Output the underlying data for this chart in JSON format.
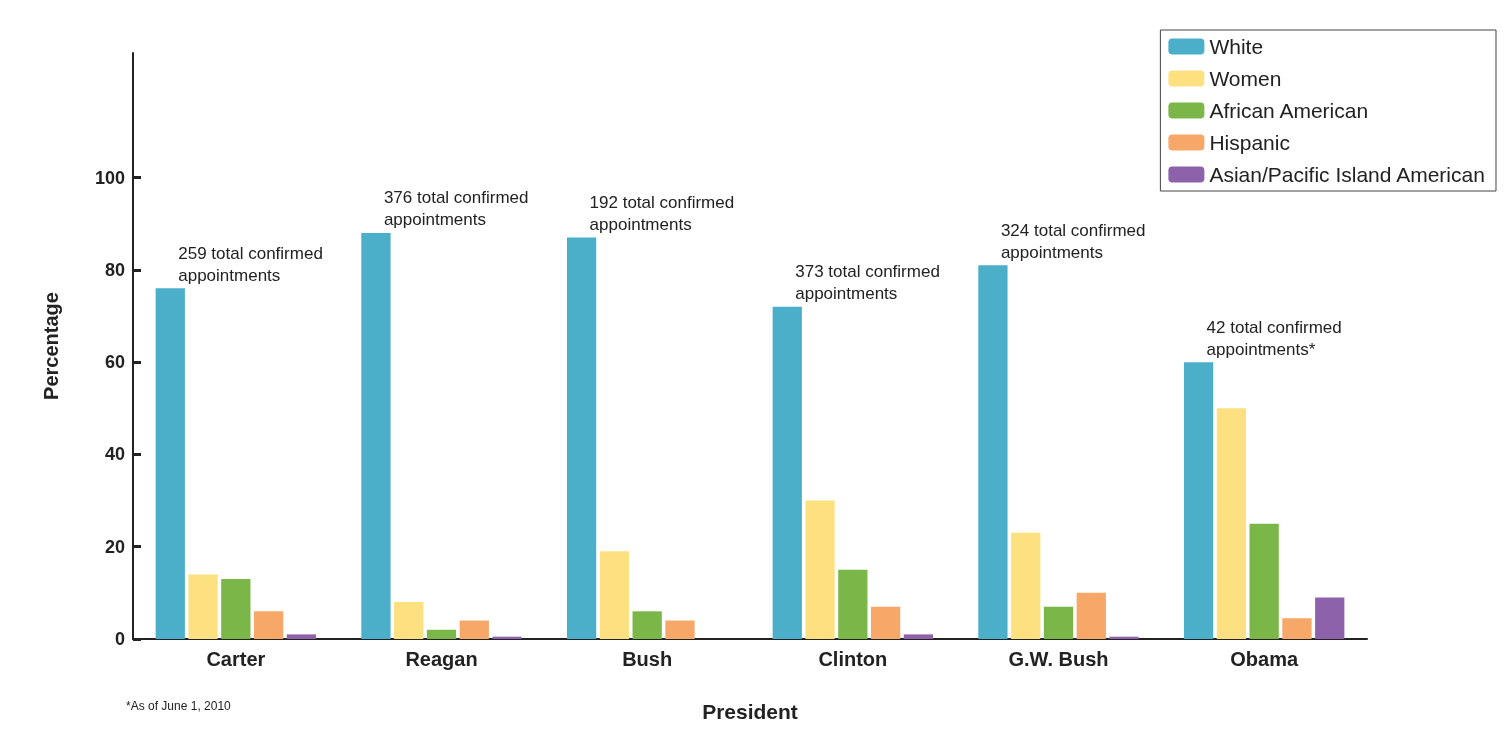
{
  "chart_data": {
    "type": "bar",
    "xlabel": "President",
    "ylabel": "Percentage",
    "categories": [
      "Carter",
      "Reagan",
      "Bush",
      "Clinton",
      "G.W. Bush",
      "Obama"
    ],
    "series": [
      {
        "name": "White",
        "color": "#4bafc9",
        "values": [
          76,
          88,
          87,
          72,
          81,
          60
        ]
      },
      {
        "name": "Women",
        "color": "#fde080",
        "values": [
          14,
          8,
          19,
          30,
          23,
          50
        ]
      },
      {
        "name": "African American",
        "color": "#7ab648",
        "values": [
          13,
          2,
          6,
          15,
          7,
          25
        ]
      },
      {
        "name": "Hispanic",
        "color": "#f7a868",
        "values": [
          6,
          4,
          4,
          7,
          10,
          4.5
        ]
      },
      {
        "name": "Asian/Pacific Island American",
        "color": "#8e62aa",
        "values": [
          1,
          0.5,
          null,
          1,
          0.5,
          9
        ]
      }
    ],
    "ylim": [
      0,
      127
    ],
    "yticks": [
      0,
      20,
      40,
      60,
      80,
      100
    ],
    "grid": false,
    "legend": "top right",
    "annotations": [
      "259 total confirmed appointments",
      "376 total confirmed appointments",
      "192 total confirmed appointments",
      "373 total confirmed appointments",
      "324 total confirmed appointments",
      "42 total confirmed appointments*",
      "*As of June 1, 2010"
    ]
  }
}
